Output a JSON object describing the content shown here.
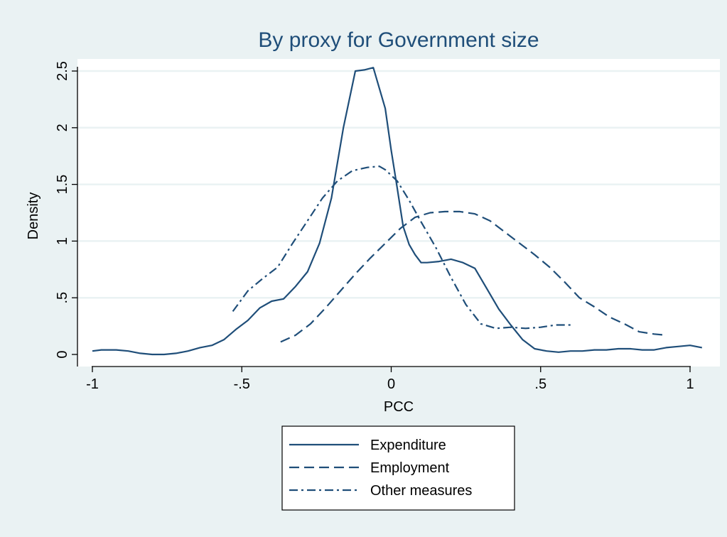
{
  "chart_data": {
    "type": "line",
    "title": "By proxy for Government size",
    "xlabel": "PCC",
    "ylabel": "Density",
    "xlim": [
      -1.05,
      1.08
    ],
    "ylim": [
      -0.12,
      2.62
    ],
    "xticks": [
      -1,
      -0.5,
      0,
      0.5,
      1
    ],
    "xtick_labels": [
      "-1",
      "-.5",
      "0",
      ".5",
      "1"
    ],
    "yticks": [
      0,
      0.5,
      1,
      1.5,
      2,
      2.5
    ],
    "ytick_labels": [
      "0",
      ".5",
      "1",
      "1.5",
      "2",
      "2.5"
    ],
    "grid": true,
    "legend_position": "bottom-center",
    "colors": {
      "background": "#eaf2f3",
      "plot_background": "#ffffff",
      "line": "#1f4e79",
      "grid": "#eaf2f3",
      "text": "#000000",
      "title": "#1f4e79"
    },
    "series": [
      {
        "name": "Expenditure",
        "dash": "solid",
        "x": [
          -1.0,
          -0.97,
          -0.92,
          -0.88,
          -0.84,
          -0.8,
          -0.76,
          -0.72,
          -0.68,
          -0.64,
          -0.6,
          -0.56,
          -0.52,
          -0.48,
          -0.44,
          -0.4,
          -0.36,
          -0.32,
          -0.28,
          -0.24,
          -0.2,
          -0.16,
          -0.12,
          -0.09,
          -0.06,
          -0.04,
          -0.02,
          0.0,
          0.02,
          0.04,
          0.06,
          0.08,
          0.1,
          0.12,
          0.16,
          0.2,
          0.24,
          0.28,
          0.32,
          0.36,
          0.4,
          0.44,
          0.48,
          0.52,
          0.56,
          0.6,
          0.64,
          0.68,
          0.72,
          0.76,
          0.8,
          0.84,
          0.88,
          0.92,
          0.96,
          1.0,
          1.04
        ],
        "y": [
          0.03,
          0.04,
          0.04,
          0.03,
          0.01,
          0.0,
          0.0,
          0.01,
          0.03,
          0.06,
          0.08,
          0.13,
          0.22,
          0.3,
          0.41,
          0.47,
          0.49,
          0.6,
          0.73,
          0.98,
          1.38,
          2.0,
          2.5,
          2.51,
          2.53,
          2.35,
          2.17,
          1.8,
          1.47,
          1.13,
          0.97,
          0.88,
          0.81,
          0.81,
          0.82,
          0.84,
          0.81,
          0.76,
          0.58,
          0.4,
          0.26,
          0.13,
          0.05,
          0.03,
          0.02,
          0.03,
          0.03,
          0.04,
          0.04,
          0.05,
          0.05,
          0.04,
          0.04,
          0.06,
          0.07,
          0.08,
          0.06
        ]
      },
      {
        "name": "Employment",
        "dash": "dash",
        "x": [
          -0.37,
          -0.32,
          -0.27,
          -0.22,
          -0.17,
          -0.12,
          -0.07,
          -0.02,
          0.03,
          0.08,
          0.13,
          0.18,
          0.23,
          0.28,
          0.33,
          0.38,
          0.43,
          0.48,
          0.53,
          0.58,
          0.63,
          0.68,
          0.73,
          0.78,
          0.83,
          0.88,
          0.92
        ],
        "y": [
          0.11,
          0.17,
          0.27,
          0.41,
          0.56,
          0.71,
          0.85,
          0.98,
          1.11,
          1.21,
          1.25,
          1.26,
          1.26,
          1.24,
          1.18,
          1.08,
          0.98,
          0.88,
          0.77,
          0.64,
          0.5,
          0.42,
          0.33,
          0.27,
          0.2,
          0.18,
          0.17
        ]
      },
      {
        "name": "Other measures",
        "dash": "dashdot",
        "x": [
          -0.53,
          -0.48,
          -0.43,
          -0.38,
          -0.33,
          -0.28,
          -0.23,
          -0.18,
          -0.13,
          -0.08,
          -0.04,
          -0.02,
          0.02,
          0.06,
          0.1,
          0.15,
          0.2,
          0.25,
          0.3,
          0.35,
          0.4,
          0.45,
          0.5,
          0.55,
          0.6
        ],
        "y": [
          0.38,
          0.56,
          0.67,
          0.77,
          0.98,
          1.18,
          1.38,
          1.53,
          1.62,
          1.65,
          1.66,
          1.63,
          1.53,
          1.36,
          1.17,
          0.94,
          0.68,
          0.44,
          0.27,
          0.23,
          0.24,
          0.23,
          0.24,
          0.26,
          0.26
        ]
      }
    ]
  }
}
